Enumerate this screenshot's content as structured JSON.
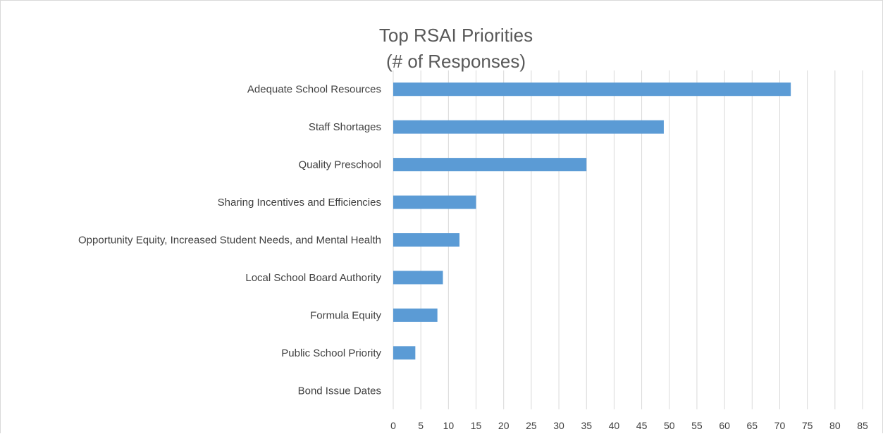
{
  "chart_data": {
    "type": "bar",
    "orientation": "horizontal",
    "title": "Top RSAI Priorities",
    "subtitle": "(# of Responses)",
    "categories": [
      "Adequate School Resources",
      "Staff Shortages",
      "Quality Preschool",
      "Sharing Incentives and Efficiencies",
      "Opportunity Equity, Increased Student Needs, and Mental Health",
      "Local School Board Authority",
      "Formula Equity",
      "Public School Priority",
      "Bond Issue Dates"
    ],
    "values": [
      72,
      49,
      35,
      15,
      12,
      9,
      8,
      4,
      0
    ],
    "xlim": [
      0,
      85
    ],
    "xticks": [
      "0",
      "5",
      "10",
      "15",
      "20",
      "25",
      "30",
      "35",
      "40",
      "45",
      "50",
      "55",
      "60",
      "65",
      "70",
      "75",
      "80",
      "85"
    ],
    "grid": true,
    "bar_color": "#5b9bd5"
  }
}
